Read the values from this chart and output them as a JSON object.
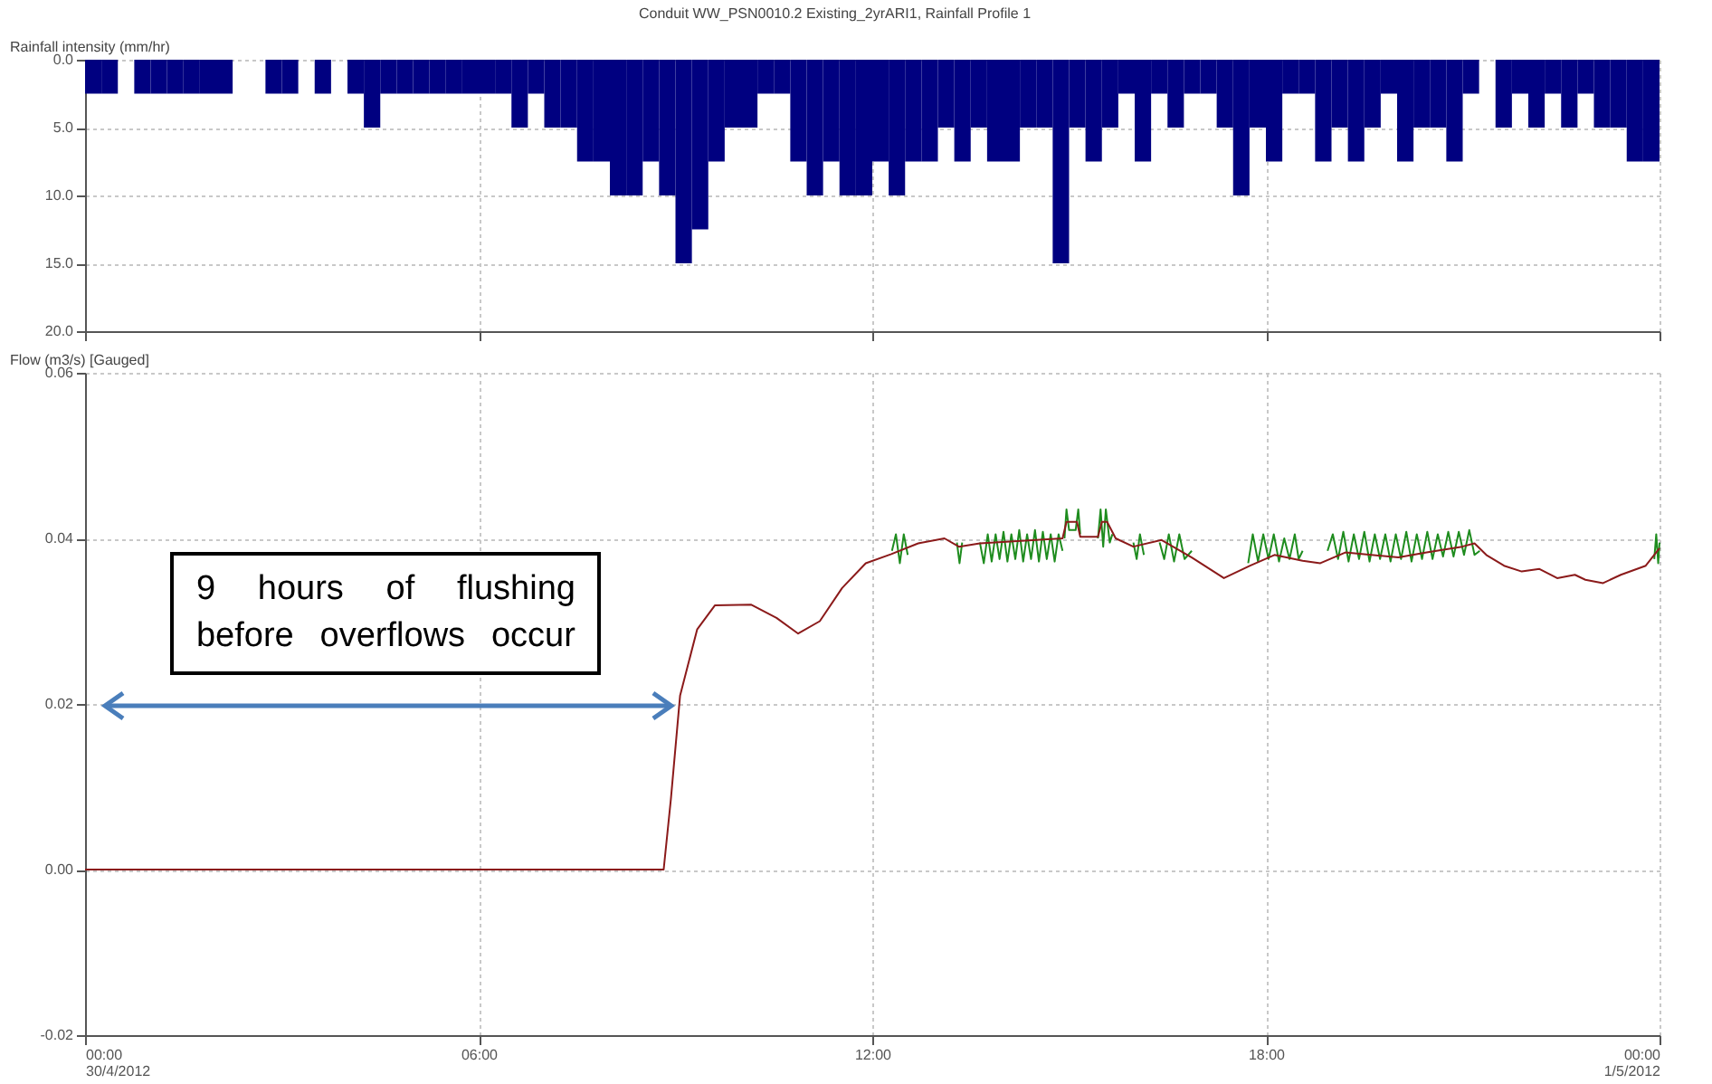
{
  "chart_data": [
    {
      "type": "histogram",
      "title": "Conduit WW_PSN0010.2 Existing_2yrARI1, Rainfall Profile 1",
      "ylabel": "Rainfall intensity (mm/hr)",
      "color": "#000080",
      "bins": [
        0,
        0.25,
        0.5,
        0.75,
        1,
        1.25,
        1.5,
        1.75,
        2,
        2.25,
        2.5,
        2.75,
        3,
        3.25,
        3.5,
        3.75,
        4,
        4.25,
        4.5,
        4.75,
        5,
        5.25,
        5.5,
        5.75,
        6,
        6.25,
        6.5,
        6.75,
        7,
        7.25,
        7.5,
        7.75,
        8,
        8.25,
        8.5,
        8.75,
        9,
        9.25,
        9.5,
        9.75,
        10,
        10.25,
        10.5,
        10.75,
        11,
        11.25,
        11.5,
        11.75,
        12,
        12.25,
        12.5,
        12.75,
        13,
        13.25,
        13.5,
        13.75,
        14,
        14.25,
        14.5,
        14.75,
        15,
        15.25,
        15.5,
        15.75,
        16,
        16.25,
        16.5,
        16.75,
        17,
        17.25,
        17.5,
        17.75,
        18,
        18.25,
        18.5,
        18.75,
        19,
        19.25,
        19.5,
        19.75,
        20,
        20.25,
        20.5,
        20.75,
        21,
        21.25,
        21.5,
        21.75,
        22,
        22.25,
        22.5,
        22.75,
        23,
        23.25,
        23.5,
        23.75,
        24
      ],
      "values": [
        2.5,
        2.5,
        0,
        2.5,
        2.5,
        2.5,
        2.5,
        2.5,
        2.5,
        0,
        0,
        2.5,
        2.5,
        0,
        2.5,
        0,
        2.5,
        5,
        2.5,
        2.5,
        2.5,
        2.5,
        2.5,
        2.5,
        2.5,
        2.5,
        5,
        2.5,
        5,
        5,
        7.5,
        7.5,
        10,
        10,
        7.5,
        10,
        15,
        12.5,
        7.5,
        5,
        5,
        2.5,
        2.5,
        7.5,
        10,
        7.5,
        10,
        10,
        7.5,
        10,
        7.5,
        7.5,
        5,
        7.5,
        5,
        7.5,
        7.5,
        5,
        5,
        15,
        5,
        7.5,
        5,
        2.5,
        7.5,
        2.5,
        5,
        2.5,
        2.5,
        5,
        10,
        5,
        7.5,
        2.5,
        2.5,
        7.5,
        5,
        7.5,
        5,
        2.5,
        7.5,
        5,
        5,
        7.5,
        2.5,
        0,
        5,
        2.5,
        5,
        2.5,
        5,
        2.5,
        5,
        5,
        7.5,
        7.5
      ],
      "xlim": [
        0,
        24
      ],
      "xticks": [
        0,
        6,
        12,
        18,
        24
      ],
      "ylim": [
        20,
        0
      ],
      "yticks": [
        {
          "value": 0,
          "label": "0.0"
        },
        {
          "value": 5,
          "label": "5.0"
        },
        {
          "value": 10,
          "label": "10.0"
        },
        {
          "value": 15,
          "label": "15.0"
        },
        {
          "value": 20,
          "label": "20.0"
        }
      ],
      "tick_labels": "y",
      "grid": true
    },
    {
      "type": "line",
      "ylabel": "Flow (m3/s) [Gauged]",
      "series": [
        {
          "color": "#1e8c1e",
          "x": [
            12.3,
            12.36,
            12.42,
            12.48,
            12.54,
            12.9,
            13.29,
            13.33,
            13.37,
            13.5,
            13.64,
            13.7,
            13.76,
            13.82,
            13.88,
            13.94,
            14.0,
            14.06,
            14.12,
            14.18,
            14.24,
            14.3,
            14.36,
            14.42,
            14.48,
            14.54,
            14.6,
            14.66,
            14.72,
            14.78,
            14.84,
            14.9,
            14.91,
            14.93,
            14.96,
            15.0,
            15.1,
            15.14,
            15.17,
            15.3,
            15.44,
            15.48,
            15.52,
            15.56,
            15.62,
            15.66,
            15.8,
            15.98,
            16.03,
            16.08,
            16.14,
            16.25,
            16.38,
            16.45,
            16.52,
            16.6,
            16.68,
            16.76,
            16.87,
            17.2,
            17.73,
            17.8,
            17.88,
            17.96,
            18.04,
            18.12,
            18.2,
            18.28,
            18.36,
            18.44,
            18.5,
            18.56,
            18.7,
            18.94,
            19.02,
            19.1,
            19.18,
            19.26,
            19.34,
            19.42,
            19.5,
            19.58,
            19.66,
            19.74,
            19.82,
            19.9,
            19.98,
            20.06,
            20.14,
            20.22,
            20.3,
            20.38,
            20.46,
            20.54,
            20.62,
            20.7,
            20.78,
            20.86,
            20.94,
            21.02,
            21.1,
            21.18,
            21.26,
            21.5,
            23.92,
            23.95,
            23.98,
            24.0
          ],
          "values": [
            0.0385,
            0.0405,
            0.037,
            0.0405,
            0.038,
            null,
            0.0395,
            0.037,
            0.0395,
            null,
            0.0395,
            0.037,
            0.0405,
            0.0372,
            0.0405,
            0.0375,
            0.0408,
            0.0372,
            0.0405,
            0.0375,
            0.041,
            0.0372,
            0.0405,
            0.0375,
            0.041,
            0.0372,
            0.0408,
            0.0375,
            0.0405,
            0.0372,
            0.0405,
            0.0385,
            null,
            0.04,
            0.0435,
            0.041,
            0.041,
            0.0435,
            0.0405,
            null,
            0.04,
            0.0435,
            0.039,
            0.0435,
            0.0395,
            0.0405,
            null,
            0.0395,
            0.0375,
            0.0405,
            0.038,
            null,
            0.0395,
            0.0375,
            0.0405,
            0.0372,
            0.0405,
            0.0375,
            0.0385,
            null,
            0.037,
            0.0405,
            0.0372,
            0.0405,
            0.0375,
            0.0405,
            0.0372,
            0.04,
            0.0375,
            0.0405,
            0.0375,
            0.0385,
            null,
            0.0385,
            0.0405,
            0.0375,
            0.0408,
            0.0372,
            0.0405,
            0.0375,
            0.0408,
            0.0372,
            0.0405,
            0.0375,
            0.0405,
            0.0372,
            0.0405,
            0.0375,
            0.0408,
            0.0372,
            0.0405,
            0.0375,
            0.0408,
            0.0375,
            0.0405,
            0.0378,
            0.0408,
            0.0378,
            0.0408,
            0.038,
            0.041,
            0.038,
            0.0385,
            null,
            0.0375,
            0.0405,
            0.037,
            0.0395
          ]
        },
        {
          "color": "#8b1a1a",
          "x": [
            0,
            8.82,
            8.93,
            9.07,
            9.33,
            9.6,
            10.15,
            10.54,
            10.87,
            11.2,
            11.54,
            11.9,
            12.29,
            12.7,
            13.1,
            13.32,
            13.64,
            14.9,
            14.96,
            15.12,
            15.17,
            15.44,
            15.5,
            15.58,
            15.71,
            15.98,
            16.41,
            16.87,
            17.36,
            17.76,
            18.13,
            18.56,
            18.83,
            19.21,
            20.02,
            20.45,
            20.99,
            21.18,
            21.36,
            21.63,
            21.9,
            22.17,
            22.44,
            22.71,
            22.87,
            23.14,
            23.41,
            23.79,
            24
          ],
          "values": [
            0,
            0,
            0.0085,
            0.021,
            0.029,
            0.0319,
            0.032,
            0.0304,
            0.0285,
            0.03,
            0.034,
            0.037,
            0.0381,
            0.0394,
            0.04,
            0.039,
            0.0394,
            0.04,
            0.042,
            0.042,
            0.0402,
            0.0402,
            0.042,
            0.042,
            0.04,
            0.039,
            0.0398,
            0.0377,
            0.0352,
            0.0367,
            0.038,
            0.0373,
            0.037,
            0.0383,
            0.0377,
            0.0383,
            0.039,
            0.0394,
            0.038,
            0.0367,
            0.036,
            0.0363,
            0.0352,
            0.0356,
            0.035,
            0.0346,
            0.0356,
            0.0367,
            0.0388
          ]
        }
      ],
      "xlim": [
        0,
        24
      ],
      "xticks": [
        {
          "value": 0,
          "label": "00:00 30/4/2012"
        },
        {
          "value": 6,
          "label": "06:00"
        },
        {
          "value": 12,
          "label": "12:00"
        },
        {
          "value": 18,
          "label": "18:00"
        },
        {
          "value": 24,
          "label": "00:00 1/5/2012"
        }
      ],
      "ylim": [
        -0.02,
        0.06
      ],
      "yticks": [
        -0.02,
        {
          "value": 0,
          "label": "0.00"
        },
        0.02,
        0.04,
        0.06
      ],
      "grid": true,
      "annotations": [
        "9 hours of flushing before overflows occur"
      ]
    }
  ]
}
